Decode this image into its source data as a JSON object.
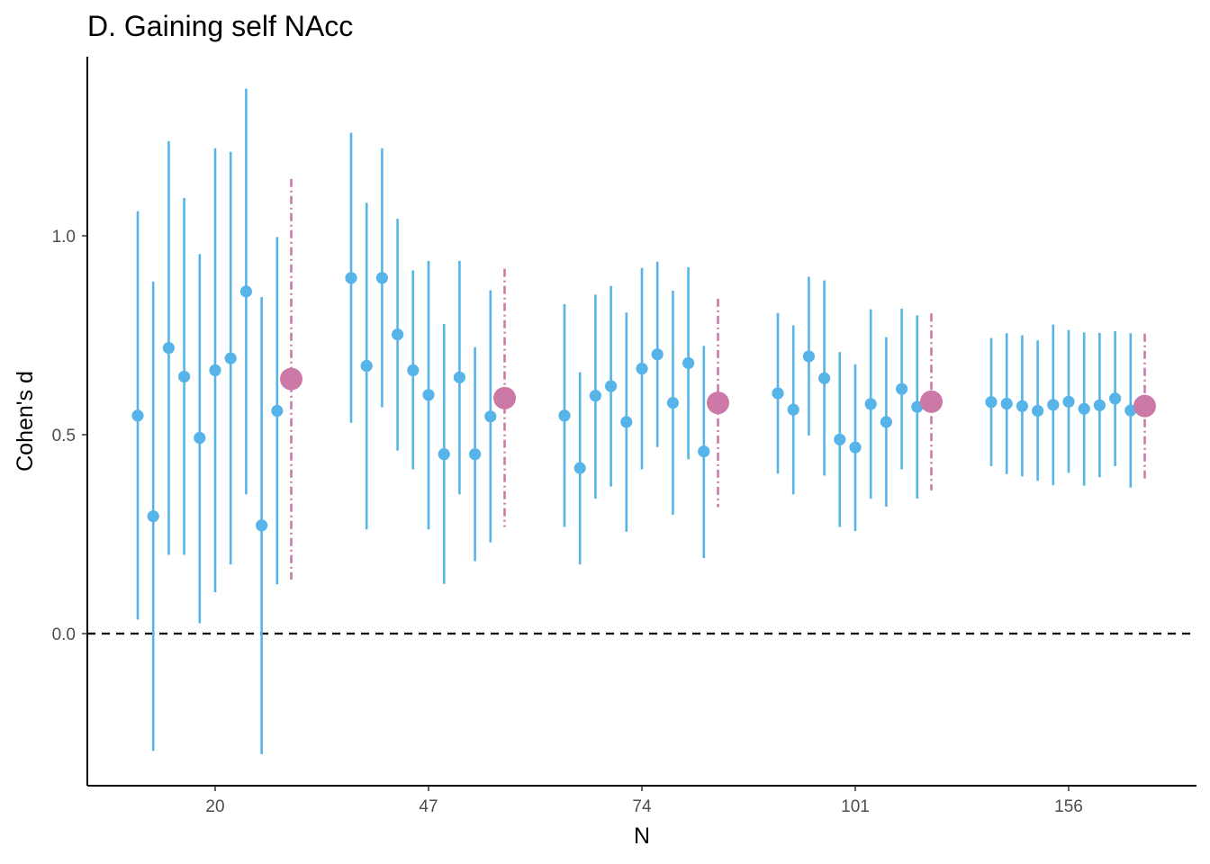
{
  "chart_data": {
    "type": "scatter",
    "title": "D. Gaining self NAcc",
    "xlabel": "N",
    "ylabel": "Cohen's d",
    "y_ticks": [
      0.0,
      0.5,
      1.0
    ],
    "y_tick_labels": [
      "0.0",
      "0.5",
      "1.0"
    ],
    "ylim": [
      -0.38,
      1.45
    ],
    "reference_line": {
      "y": 0,
      "style": "dashed",
      "color": "#000000"
    },
    "grid": false,
    "legend": "none",
    "colors": {
      "sample": "#56B4E9",
      "pooled": "#CC79A7"
    },
    "groups": [
      {
        "label": "20",
        "samples": [
          {
            "d": 0.548,
            "lo": 0.035,
            "hi": 1.062
          },
          {
            "d": 0.295,
            "lo": -0.295,
            "hi": 0.885
          },
          {
            "d": 0.718,
            "lo": 0.198,
            "hi": 1.238
          },
          {
            "d": 0.646,
            "lo": 0.198,
            "hi": 1.095
          },
          {
            "d": 0.492,
            "lo": 0.026,
            "hi": 0.954
          },
          {
            "d": 0.662,
            "lo": 0.104,
            "hi": 1.22
          },
          {
            "d": 0.692,
            "lo": 0.174,
            "hi": 1.211
          },
          {
            "d": 0.86,
            "lo": 0.35,
            "hi": 1.37
          },
          {
            "d": 0.272,
            "lo": -0.303,
            "hi": 0.846
          },
          {
            "d": 0.56,
            "lo": 0.124,
            "hi": 0.997
          }
        ],
        "pooled": {
          "d": 0.64,
          "lo": 0.136,
          "hi": 1.143
        }
      },
      {
        "label": "47",
        "samples": [
          {
            "d": 0.894,
            "lo": 0.53,
            "hi": 1.259
          },
          {
            "d": 0.673,
            "lo": 0.262,
            "hi": 1.083
          },
          {
            "d": 0.894,
            "lo": 0.569,
            "hi": 1.22
          },
          {
            "d": 0.752,
            "lo": 0.46,
            "hi": 1.043
          },
          {
            "d": 0.662,
            "lo": 0.413,
            "hi": 0.913
          },
          {
            "d": 0.6,
            "lo": 0.262,
            "hi": 0.937
          },
          {
            "d": 0.451,
            "lo": 0.125,
            "hi": 0.778
          },
          {
            "d": 0.644,
            "lo": 0.35,
            "hi": 0.937
          },
          {
            "d": 0.451,
            "lo": 0.182,
            "hi": 0.72
          },
          {
            "d": 0.546,
            "lo": 0.229,
            "hi": 0.863
          }
        ],
        "pooled": {
          "d": 0.592,
          "lo": 0.268,
          "hi": 0.917
        }
      },
      {
        "label": "74",
        "samples": [
          {
            "d": 0.548,
            "lo": 0.268,
            "hi": 0.828
          },
          {
            "d": 0.416,
            "lo": 0.174,
            "hi": 0.657
          },
          {
            "d": 0.598,
            "lo": 0.339,
            "hi": 0.852
          },
          {
            "d": 0.622,
            "lo": 0.37,
            "hi": 0.874
          },
          {
            "d": 0.532,
            "lo": 0.256,
            "hi": 0.807
          },
          {
            "d": 0.666,
            "lo": 0.413,
            "hi": 0.919
          },
          {
            "d": 0.702,
            "lo": 0.469,
            "hi": 0.935
          },
          {
            "d": 0.58,
            "lo": 0.299,
            "hi": 0.862
          },
          {
            "d": 0.68,
            "lo": 0.438,
            "hi": 0.921
          },
          {
            "d": 0.458,
            "lo": 0.19,
            "hi": 0.723
          }
        ],
        "pooled": {
          "d": 0.58,
          "lo": 0.318,
          "hi": 0.842
        }
      },
      {
        "label": "101",
        "samples": [
          {
            "d": 0.604,
            "lo": 0.402,
            "hi": 0.806
          },
          {
            "d": 0.563,
            "lo": 0.35,
            "hi": 0.775
          },
          {
            "d": 0.697,
            "lo": 0.498,
            "hi": 0.897
          },
          {
            "d": 0.642,
            "lo": 0.397,
            "hi": 0.888
          },
          {
            "d": 0.488,
            "lo": 0.268,
            "hi": 0.708
          },
          {
            "d": 0.468,
            "lo": 0.258,
            "hi": 0.677
          },
          {
            "d": 0.577,
            "lo": 0.339,
            "hi": 0.815
          },
          {
            "d": 0.532,
            "lo": 0.319,
            "hi": 0.745
          },
          {
            "d": 0.615,
            "lo": 0.413,
            "hi": 0.817
          },
          {
            "d": 0.57,
            "lo": 0.339,
            "hi": 0.8
          }
        ],
        "pooled": {
          "d": 0.583,
          "lo": 0.36,
          "hi": 0.805
        }
      },
      {
        "label": "156",
        "samples": [
          {
            "d": 0.582,
            "lo": 0.421,
            "hi": 0.743
          },
          {
            "d": 0.578,
            "lo": 0.401,
            "hi": 0.755
          },
          {
            "d": 0.572,
            "lo": 0.395,
            "hi": 0.75
          },
          {
            "d": 0.56,
            "lo": 0.384,
            "hi": 0.737
          },
          {
            "d": 0.575,
            "lo": 0.373,
            "hi": 0.777
          },
          {
            "d": 0.583,
            "lo": 0.404,
            "hi": 0.763
          },
          {
            "d": 0.565,
            "lo": 0.372,
            "hi": 0.757
          },
          {
            "d": 0.574,
            "lo": 0.393,
            "hi": 0.756
          },
          {
            "d": 0.591,
            "lo": 0.421,
            "hi": 0.76
          },
          {
            "d": 0.561,
            "lo": 0.367,
            "hi": 0.755
          }
        ],
        "pooled": {
          "d": 0.572,
          "lo": 0.39,
          "hi": 0.754
        }
      }
    ]
  }
}
